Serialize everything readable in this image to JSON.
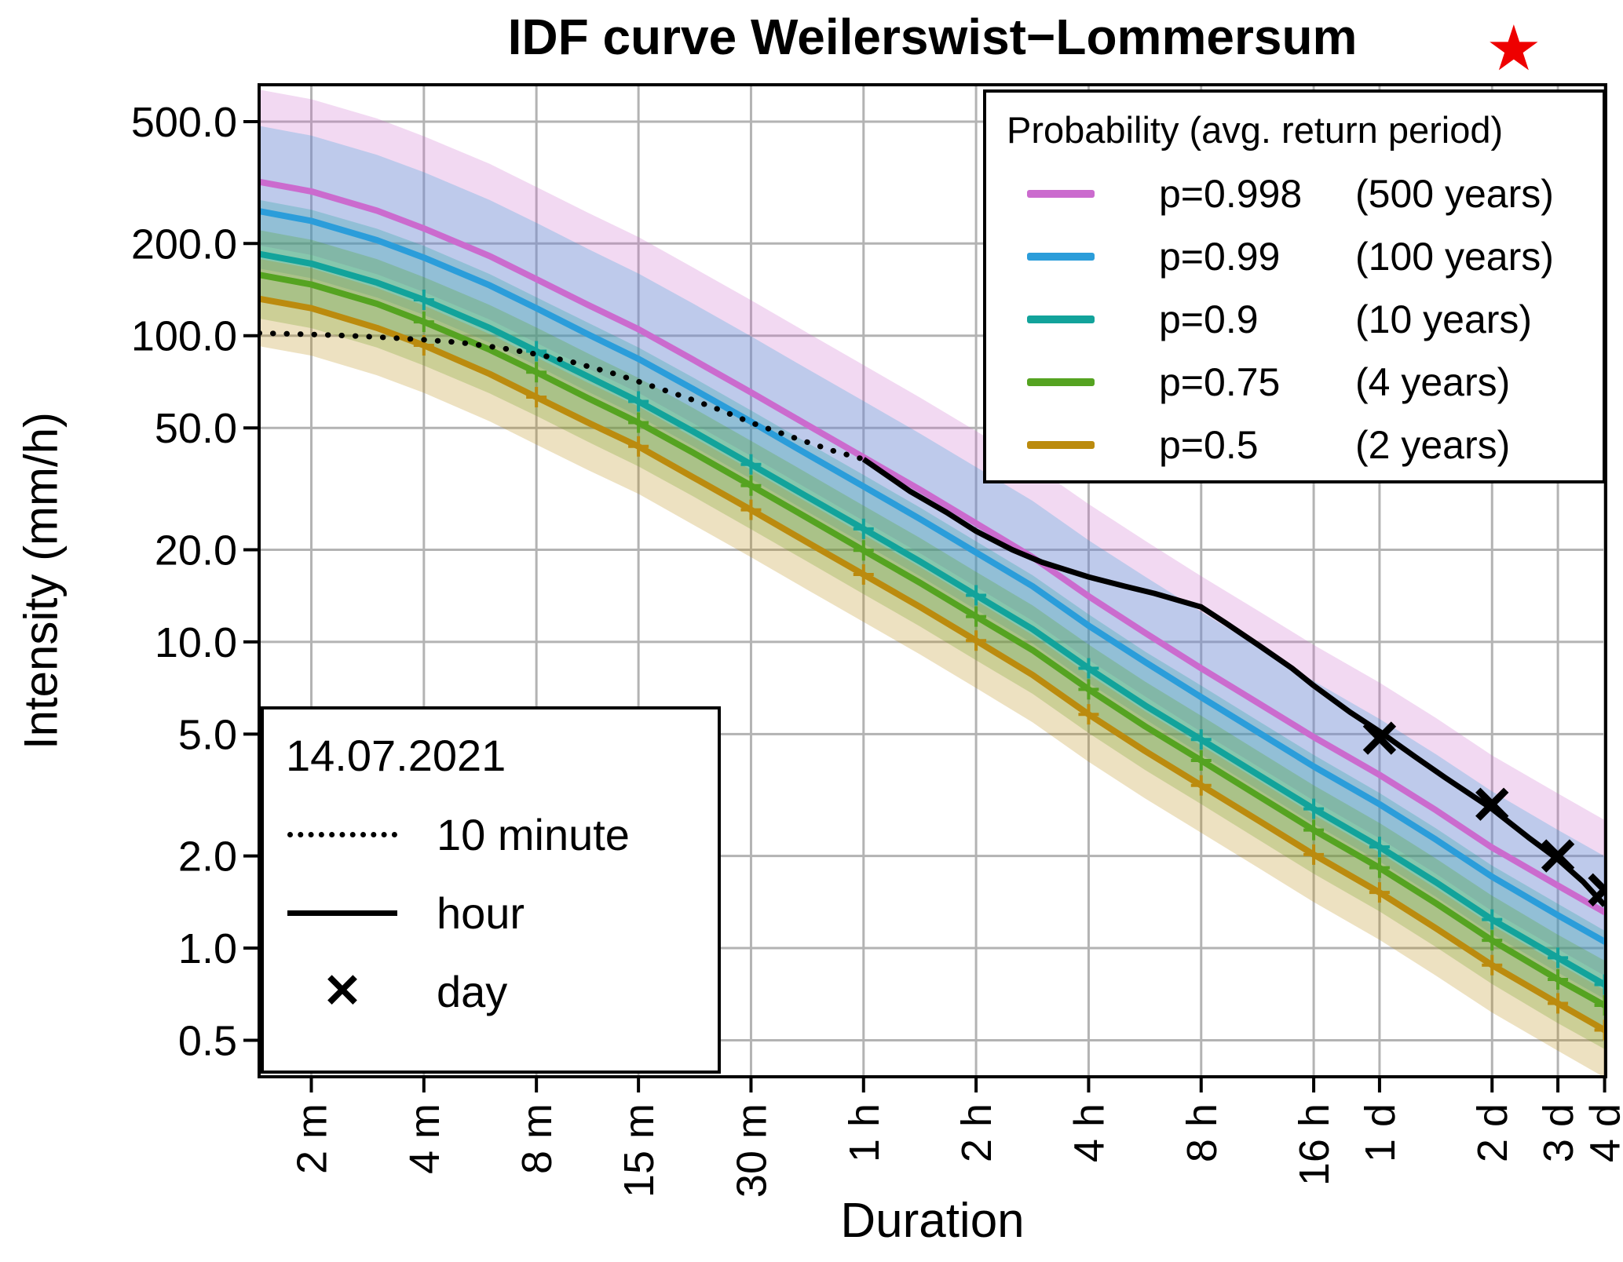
{
  "chart_data": {
    "type": "line",
    "title": "IDF curve Weilerswist−Lommersum",
    "xlabel": "Duration",
    "ylabel": "Intensity (mm/h)",
    "x_scale": "log",
    "y_scale": "log",
    "x_domain_minutes": [
      1.45,
      5800
    ],
    "y_domain_mm_per_h": [
      0.38,
      660
    ],
    "grid_color": "#b3b3b3",
    "axis_color": "#000000",
    "legend_probability_title": "Probability (avg. return period)",
    "y_ticks": [
      {
        "label": "500.0",
        "value": 500
      },
      {
        "label": "200.0",
        "value": 200
      },
      {
        "label": "100.0",
        "value": 100
      },
      {
        "label": "50.0",
        "value": 50
      },
      {
        "label": "20.0",
        "value": 20
      },
      {
        "label": "10.0",
        "value": 10
      },
      {
        "label": "5.0",
        "value": 5
      },
      {
        "label": "2.0",
        "value": 2
      },
      {
        "label": "1.0",
        "value": 1
      },
      {
        "label": "0.5",
        "value": 0.5
      }
    ],
    "x_ticks": [
      {
        "label": "2 m",
        "minutes": 2
      },
      {
        "label": "4 m",
        "minutes": 4
      },
      {
        "label": "8 m",
        "minutes": 8
      },
      {
        "label": "15 m",
        "minutes": 15
      },
      {
        "label": "30 m",
        "minutes": 30
      },
      {
        "label": "1 h",
        "minutes": 60
      },
      {
        "label": "2 h",
        "minutes": 120
      },
      {
        "label": "4 h",
        "minutes": 240
      },
      {
        "label": "8 h",
        "minutes": 480
      },
      {
        "label": "16 h",
        "minutes": 960
      },
      {
        "label": "1 d",
        "minutes": 1440
      },
      {
        "label": "2 d",
        "minutes": 2880
      },
      {
        "label": "3 d",
        "minutes": 4320
      },
      {
        "label": "4 d",
        "minutes": 5760
      }
    ],
    "x_minutes": [
      1.45,
      2,
      3,
      4,
      6,
      8,
      11,
      15,
      21,
      30,
      42,
      60,
      85,
      120,
      170,
      240,
      340,
      480,
      680,
      960,
      1440,
      2040,
      2880,
      4320,
      5760
    ],
    "marker_x_minutes": [
      4,
      8,
      15,
      30,
      60,
      120,
      240,
      480,
      960,
      1440,
      2880,
      4320,
      5760
    ],
    "series": [
      {
        "id": "p0998",
        "p_label": "p=0.998",
        "period_label": "(500 years)",
        "color": "#cb6bce",
        "band_factor": [
          0.62,
          2.0
        ],
        "band_opacity": 0.26,
        "has_markers": false,
        "values": [
          318,
          296,
          256,
          224,
          182,
          153,
          126,
          105,
          83.5,
          65.3,
          51.5,
          40.1,
          31.4,
          24.4,
          18.9,
          14.1,
          10.7,
          8.2,
          6.33,
          4.89,
          3.68,
          2.82,
          2.13,
          1.6,
          1.31
        ]
      },
      {
        "id": "p099",
        "p_label": "p=0.99",
        "period_label": "(100 years)",
        "color": "#2b9dda",
        "band_factor": [
          0.65,
          1.9
        ],
        "band_opacity": 0.26,
        "has_markers": false,
        "values": [
          255,
          237,
          205,
          180,
          146,
          123,
          101,
          84,
          67,
          52.4,
          41.3,
          32.2,
          25.2,
          19.6,
          15.2,
          11.3,
          8.6,
          6.6,
          5.08,
          3.92,
          2.95,
          2.26,
          1.71,
          1.28,
          1.05
        ]
      },
      {
        "id": "p09",
        "p_label": "p=0.9",
        "period_label": "(10 years)",
        "color": "#12a39b",
        "band_factor": [
          0.7,
          1.5
        ],
        "band_opacity": 0.26,
        "has_markers": true,
        "values": [
          185,
          172,
          149,
          131,
          106,
          89,
          73.5,
          61,
          48.7,
          38,
          30,
          23.4,
          18.3,
          14.2,
          11.0,
          8.2,
          6.2,
          4.8,
          3.69,
          2.85,
          2.14,
          1.64,
          1.24,
          0.93,
          0.76
        ]
      },
      {
        "id": "p075",
        "p_label": "p=0.75",
        "period_label": "(4 years)",
        "color": "#55a321",
        "band_factor": [
          0.72,
          1.4
        ],
        "band_opacity": 0.26,
        "has_markers": true,
        "values": [
          158,
          147,
          127,
          111,
          90,
          76,
          62.5,
          52,
          41.5,
          32.4,
          25.6,
          19.9,
          15.6,
          12.1,
          9.4,
          7.0,
          5.3,
          4.1,
          3.15,
          2.43,
          1.83,
          1.4,
          1.06,
          0.79,
          0.65
        ]
      },
      {
        "id": "p05",
        "p_label": "p=0.5",
        "period_label": "(2 years)",
        "color": "#bb8b0e",
        "band_factor": [
          0.7,
          1.35
        ],
        "band_opacity": 0.26,
        "has_markers": true,
        "values": [
          132,
          123,
          106,
          93,
          75,
          63,
          52,
          43.5,
          34.5,
          27,
          21.3,
          16.6,
          13.0,
          10.1,
          7.8,
          5.8,
          4.4,
          3.4,
          2.62,
          2.02,
          1.52,
          1.16,
          0.88,
          0.66,
          0.54
        ]
      }
    ],
    "observed": {
      "date_label": "14.07.2021",
      "color": "#000000",
      "ten_minute": {
        "label": "10 minute",
        "style": "dotted",
        "x_minutes": [
          1.45,
          2,
          2.5,
          3,
          4,
          5,
          6.5,
          8,
          10,
          13,
          16,
          20,
          25,
          30,
          40,
          50,
          60
        ],
        "values": [
          102,
          101,
          100,
          99,
          97,
          95,
          91,
          87,
          82,
          75,
          69,
          63,
          57,
          52,
          46,
          42,
          39.5
        ]
      },
      "hour": {
        "label": "hour",
        "style": "solid",
        "x_minutes": [
          60,
          80,
          100,
          120,
          150,
          180,
          240,
          300,
          360,
          480,
          560,
          680,
          840,
          960,
          1200,
          1440,
          1800,
          2160,
          2880,
          3600,
          4320,
          5040,
          5760
        ],
        "values": [
          39.5,
          31,
          26.5,
          23,
          20,
          18.2,
          16.3,
          15.2,
          14.4,
          13,
          11.5,
          9.8,
          8.2,
          7.2,
          5.9,
          5.1,
          4.2,
          3.6,
          2.85,
          2.3,
          1.95,
          1.65,
          1.38
        ]
      },
      "day": {
        "label": "day",
        "style": "x-marker",
        "x_minutes": [
          1440,
          2880,
          4320,
          5760
        ],
        "values": [
          4.85,
          2.95,
          2.0,
          1.55
        ]
      }
    },
    "star_marker": {
      "glyph": "★",
      "color": "#ee0000",
      "position": "top-right"
    }
  }
}
